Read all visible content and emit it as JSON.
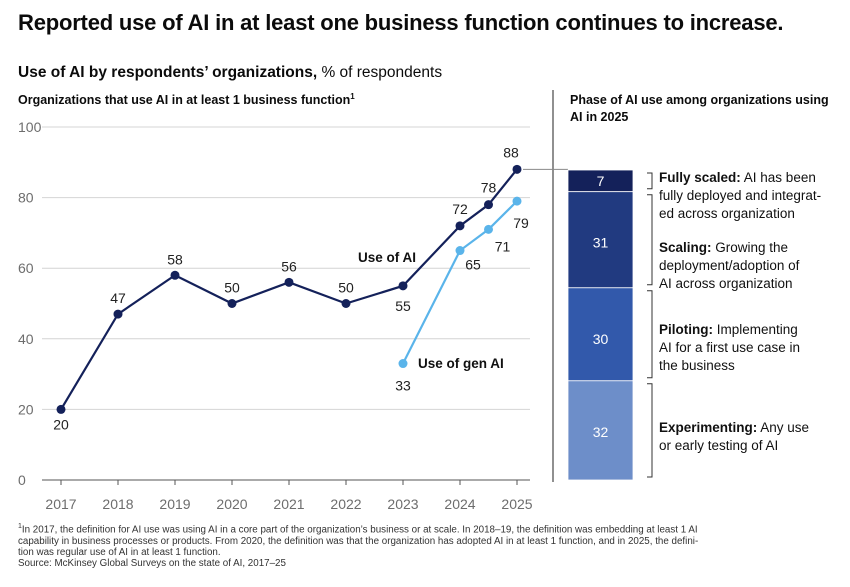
{
  "title": "Reported use of AI in at least one business function continues to increase.",
  "subtitle_bold": "Use of AI by respondents’ organizations,",
  "subtitle_rest": " % of respondents",
  "left_heading": "Organizations that use AI in at least 1 business function",
  "left_heading_sup": "1",
  "right_heading": "Phase of AI use among organizations using AI in 2025",
  "chart_data": [
    {
      "type": "line",
      "title": "Organizations that use AI in at least 1 business function",
      "ylim": [
        0,
        100
      ],
      "yticks": [
        "0",
        "20",
        "40",
        "60",
        "80",
        "100"
      ],
      "xticks": [
        "2017",
        "2018",
        "2019",
        "2020",
        "2021",
        "2022",
        "2023",
        "2024",
        "2025"
      ],
      "grid": true,
      "series": [
        {
          "name": "Use of AI",
          "color": "#14215a",
          "points": [
            {
              "x": 2017,
              "y": 20,
              "label": "20"
            },
            {
              "x": 2018,
              "y": 47,
              "label": "47"
            },
            {
              "x": 2019,
              "y": 58,
              "label": "58"
            },
            {
              "x": 2020,
              "y": 50,
              "label": "50"
            },
            {
              "x": 2021,
              "y": 56,
              "label": "56"
            },
            {
              "x": 2022,
              "y": 50,
              "label": "50"
            },
            {
              "x": 2023,
              "y": 55,
              "label": "55"
            },
            {
              "x": 2024,
              "y": 72,
              "label": "72"
            },
            {
              "x": 2024.5,
              "y": 78,
              "label": "78"
            },
            {
              "x": 2025,
              "y": 88,
              "label": "88"
            }
          ]
        },
        {
          "name": "Use of gen AI",
          "color": "#5ab4ea",
          "points": [
            {
              "x": 2023,
              "y": 33,
              "label": "33"
            },
            {
              "x": 2024,
              "y": 65,
              "label": "65"
            },
            {
              "x": 2024.5,
              "y": 71,
              "label": "71"
            },
            {
              "x": 2025,
              "y": 79,
              "label": "79"
            }
          ]
        }
      ]
    },
    {
      "type": "bar",
      "title": "Phase of AI use among organizations using AI in 2025",
      "stacked": true,
      "segments": [
        {
          "value": 7,
          "label": "7",
          "color": "#14215a",
          "name": "Fully scaled:",
          "desc": [
            "AI has been",
            "fully deployed and integrat-",
            "ed across organization"
          ]
        },
        {
          "value": 31,
          "label": "31",
          "color": "#213a80",
          "name": "Scaling:",
          "desc": [
            "Growing the",
            "deployment/adoption of",
            "AI across organization"
          ]
        },
        {
          "value": 30,
          "label": "30",
          "color": "#3259ab",
          "name": "Piloting:",
          "desc": [
            "Implementing",
            "AI for a first use case in",
            "the business"
          ]
        },
        {
          "value": 32,
          "label": "32",
          "color": "#6d8ec9",
          "name": "Experimenting:",
          "desc": [
            "Any use",
            "or early testing of AI"
          ]
        }
      ]
    }
  ],
  "footnote": [
    "In 2017, the definition for AI use was using AI in a core part of the organization’s business or at scale. In 2018–19, the definition was embedding at least 1 AI",
    "capability in business processes or products. From 2020, the definition was that the organization has adopted AI in at least 1 function, and in 2025, the defini-",
    "tion was regular use of AI in at least 1 function."
  ],
  "footnote_mark": "1",
  "source": "Source: McKinsey Global Surveys on the state of AI, 2017–25"
}
